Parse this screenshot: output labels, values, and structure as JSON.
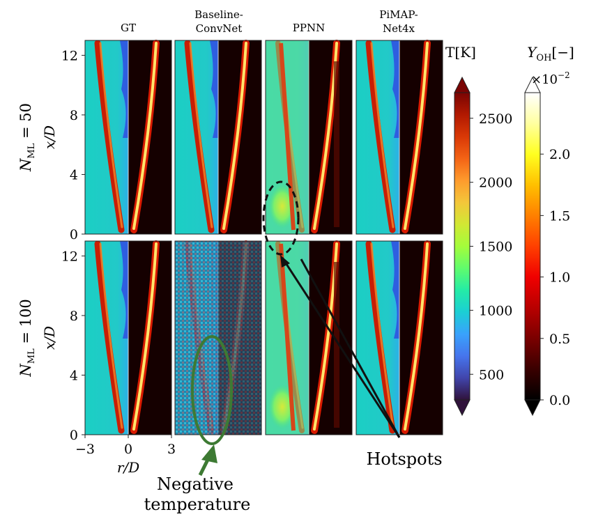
{
  "chart_data": {
    "type": "heatmap",
    "columns": [
      "GT",
      "Baseline-ConvNet",
      "PPNN",
      "PiMAP-Net4x"
    ],
    "column_titles": [
      [
        "GT"
      ],
      [
        "Baseline-",
        "ConvNet"
      ],
      [
        "PPNN"
      ],
      [
        "PiMAP-",
        "Net4x"
      ]
    ],
    "rows": [
      {
        "label_math": "N",
        "label_sub": "ML",
        "label_rest": " = 50"
      },
      {
        "label_math": "N",
        "label_sub": "ML",
        "label_rest": " = 100"
      }
    ],
    "ylabel": "x/D",
    "xlabel": "r/D",
    "yticks": [
      0,
      4,
      8,
      12
    ],
    "ylim": [
      0,
      13
    ],
    "xticks": [
      -3,
      0,
      3
    ],
    "xlim": [
      -3,
      3
    ],
    "colorbars": [
      {
        "name": "T",
        "label": "T[K]",
        "ticks": [
          500,
          1000,
          1500,
          2000,
          2500
        ],
        "range": [
          300,
          2700
        ],
        "colors": [
          "#30123b",
          "#4145ab",
          "#4675ed",
          "#39a2fc",
          "#1bcfd4",
          "#24eca6",
          "#61fc6c",
          "#a4fc3b",
          "#d1e834",
          "#f3c63a",
          "#fe9b2d",
          "#f36315",
          "#d93806",
          "#b11901",
          "#7a0403"
        ]
      },
      {
        "name": "Y_OH",
        "label_math": "Y",
        "label_sub": "OH",
        "label_rest": "[−]",
        "multiplier_base": "×10",
        "multiplier_exp": "−2",
        "ticks": [
          "0.0",
          "0.5",
          "1.0",
          "1.5",
          "2.0"
        ],
        "tick_values": [
          0.0,
          0.5,
          1.0,
          1.5,
          2.0
        ],
        "range": [
          0.0,
          2.5
        ],
        "colors": [
          "#000000",
          "#3a0000",
          "#7a0000",
          "#b80000",
          "#f00000",
          "#ff4000",
          "#ff8000",
          "#ffc000",
          "#ffff20",
          "#ffffa0",
          "#ffffff"
        ]
      }
    ],
    "annotations": [
      {
        "text": "Hotspots",
        "target": "PPNN"
      },
      {
        "text": "Negative temperature",
        "lines": [
          "Negative",
          "temperature"
        ],
        "target": "Baseline-ConvNet"
      }
    ]
  }
}
